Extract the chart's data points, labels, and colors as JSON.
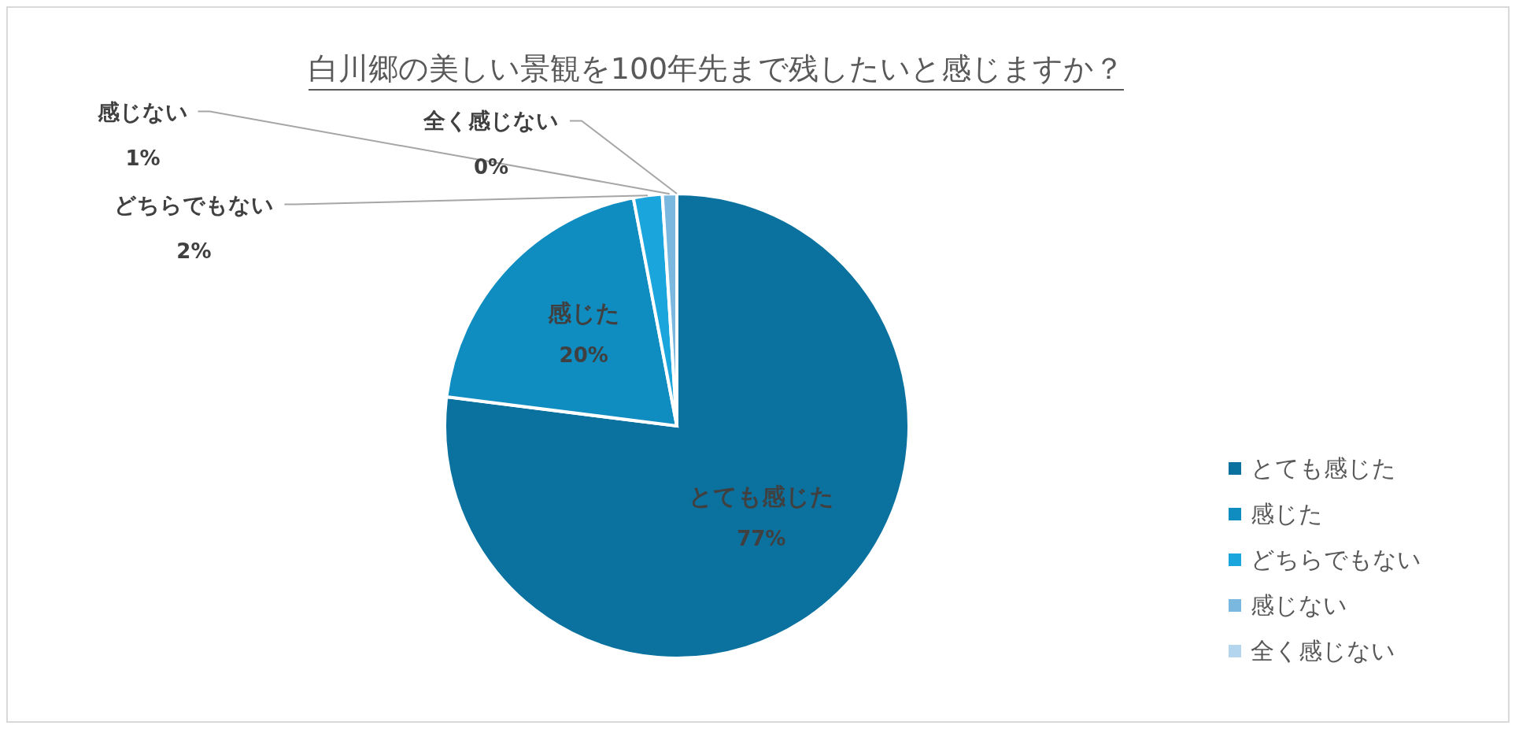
{
  "chart_data": {
    "type": "pie",
    "title": "白川郷の美しい景観を100年先まで残したいと感じますか？",
    "categories": [
      "とても感じた",
      "感じた",
      "どちらでもない",
      "感じない",
      "全く感じない"
    ],
    "values": [
      77,
      20,
      2,
      1,
      0
    ],
    "value_labels": [
      "77%",
      "20%",
      "2%",
      "1%",
      "0%"
    ],
    "colors": [
      "#0b729f",
      "#0f8cc0",
      "#1aa5dc",
      "#7ab8e0",
      "#b3d6ee"
    ],
    "legend": "right"
  }
}
